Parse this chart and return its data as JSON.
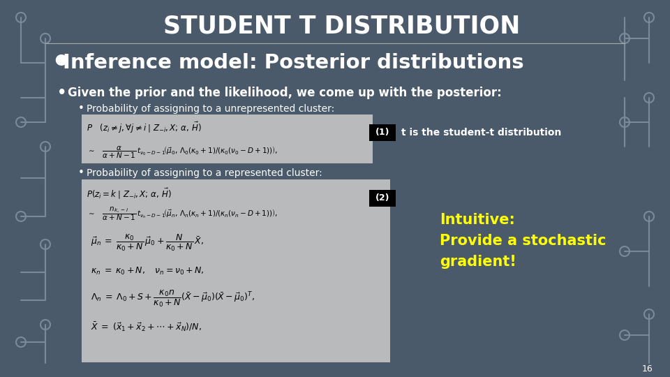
{
  "title": "STUDENT T DISTRIBUTION",
  "subtitle": "Inference model: Posterior distributions",
  "background_color": "#4a5a6a",
  "title_color": "#ffffff",
  "subtitle_color": "#ffffff",
  "text_color": "#ffffff",
  "yellow_color": "#ffff00",
  "bullet1": "Given the prior and the likelihood, we come up with the posterior:",
  "sub_bullet1": "Probability of assigning to a unrepresented cluster:",
  "sub_bullet2": "Probability of assigning to a represented cluster:",
  "label1": "(1)",
  "note1": "t is the student-t distribution",
  "label2": "(2)",
  "intuitive_line1": "Intuitive:",
  "intuitive_line2": "Provide a stochastic",
  "intuitive_line3": "gradient!",
  "page_number": "16",
  "line_color": "#7a8a9a",
  "formula_bg": "#c8c8c8"
}
